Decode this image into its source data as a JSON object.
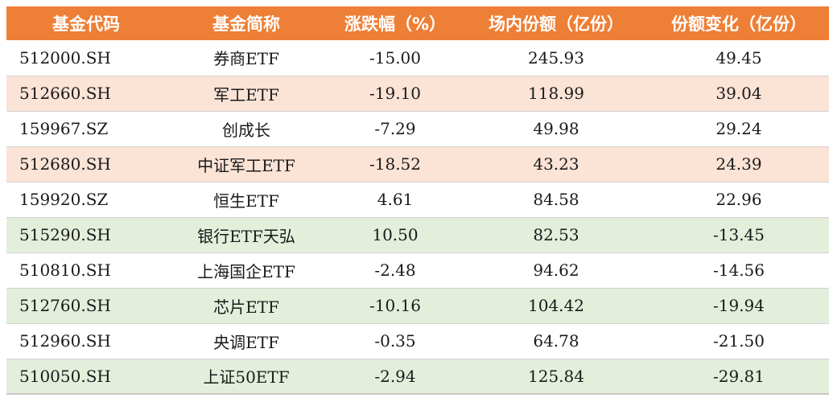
{
  "headers": [
    "基金代码",
    "基金简称",
    "涨跌幅（%）",
    "场内份额（亿份）",
    "份额变化（亿份）"
  ],
  "colors": {
    "header_bg": "#ee7f36",
    "row_highlight_increase": "#fbe3d6",
    "row_highlight_decrease": "#e3efdb",
    "row_plain": "#ffffff"
  },
  "rows": [
    {
      "code": "512000.SH",
      "name": "券商ETF",
      "change_pct": "-15.00",
      "shares": "245.93",
      "share_change": "49.45",
      "bg": "white"
    },
    {
      "code": "512660.SH",
      "name": "军工ETF",
      "change_pct": "-19.10",
      "shares": "118.99",
      "share_change": "39.04",
      "bg": "orange"
    },
    {
      "code": "159967.SZ",
      "name": "创成长",
      "change_pct": "-7.29",
      "shares": "49.98",
      "share_change": "29.24",
      "bg": "white"
    },
    {
      "code": "512680.SH",
      "name": "中证军工ETF",
      "change_pct": "-18.52",
      "shares": "43.23",
      "share_change": "24.39",
      "bg": "orange"
    },
    {
      "code": "159920.SZ",
      "name": "恒生ETF",
      "change_pct": "4.61",
      "shares": "84.58",
      "share_change": "22.96",
      "bg": "white"
    },
    {
      "code": "515290.SH",
      "name": "银行ETF天弘",
      "change_pct": "10.50",
      "shares": "82.53",
      "share_change": "-13.45",
      "bg": "green"
    },
    {
      "code": "510810.SH",
      "name": "上海国企ETF",
      "change_pct": "-2.48",
      "shares": "94.62",
      "share_change": "-14.56",
      "bg": "white"
    },
    {
      "code": "512760.SH",
      "name": "芯片ETF",
      "change_pct": "-10.16",
      "shares": "104.42",
      "share_change": "-19.94",
      "bg": "green"
    },
    {
      "code": "512960.SH",
      "name": "央调ETF",
      "change_pct": "-0.35",
      "shares": "64.78",
      "share_change": "-21.50",
      "bg": "white"
    },
    {
      "code": "510050.SH",
      "name": "上证50ETF",
      "change_pct": "-2.94",
      "shares": "125.84",
      "share_change": "-29.81",
      "bg": "green"
    }
  ]
}
